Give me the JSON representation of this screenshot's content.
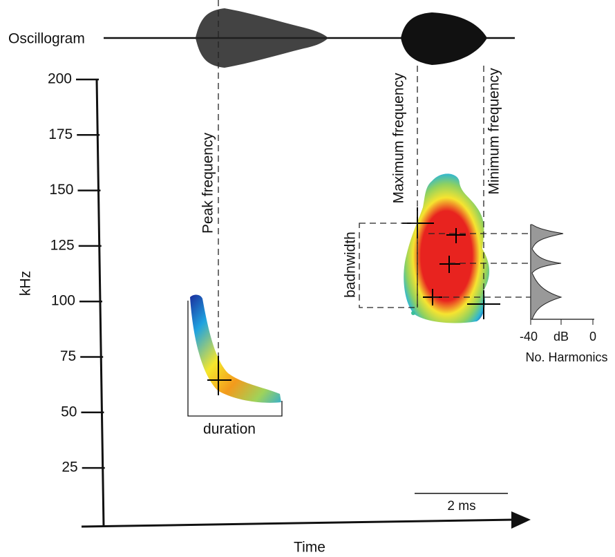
{
  "oscillogram_label": "Oscillogram",
  "y_axis": {
    "label": "kHz",
    "ticks": [
      "200",
      "175",
      "150",
      "125",
      "100",
      "75",
      "50",
      "25"
    ]
  },
  "x_axis": {
    "label": "Time"
  },
  "annotations": {
    "peak_frequency": "Peak frequency",
    "maximum_frequency": "Maximum frequency",
    "minimum_frequency": "Minimum frequency",
    "bandwidth": "badnwidth",
    "duration": "duration",
    "scale_bar": "2 ms"
  },
  "harmonics_panel": {
    "tick_labels": [
      "-40",
      "dB",
      "0"
    ],
    "label": "No. Harmonics"
  }
}
